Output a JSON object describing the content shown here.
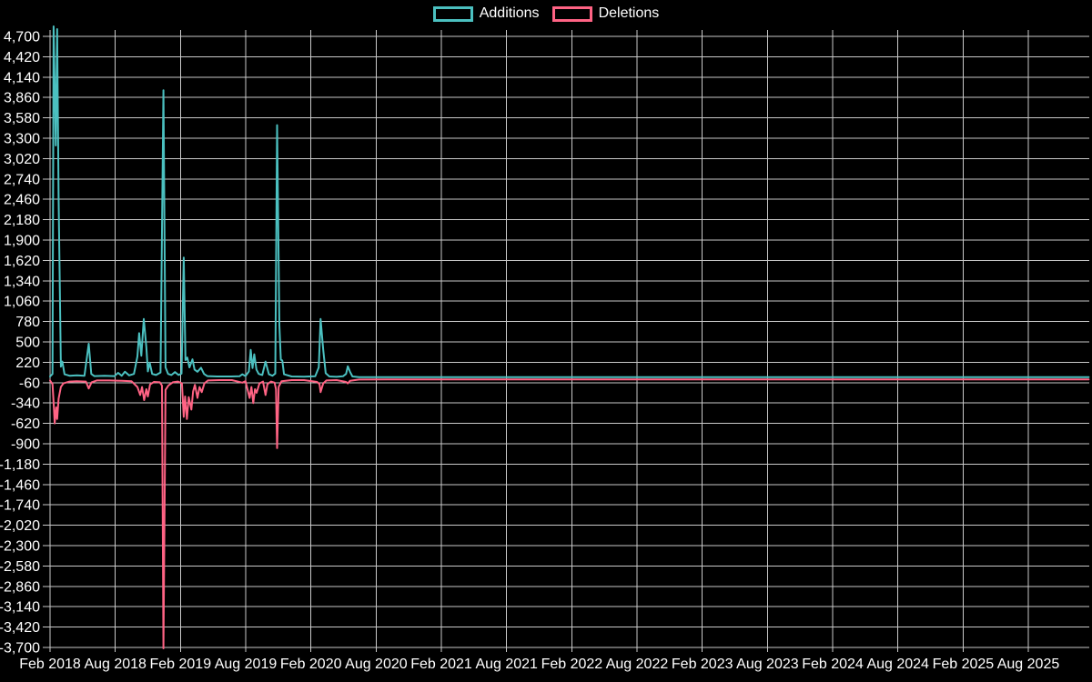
{
  "page": {
    "background": "#000000",
    "text_color": "#ffffff",
    "grid_color": "#c9c9c9"
  },
  "chart_data": {
    "type": "line",
    "title": "",
    "legend_position": "top",
    "grid": true,
    "background": "#000000",
    "x_axis": {
      "start": "2018-02-01",
      "end": "2026-01-18",
      "tick_interval_months": 6,
      "tick_labels": [
        "Feb 2018",
        "Aug 2018",
        "Feb 2019",
        "Aug 2019",
        "Feb 2020",
        "Aug 2020",
        "Feb 2021",
        "Aug 2021",
        "Feb 2022",
        "Aug 2022",
        "Feb 2023",
        "Aug 2023",
        "Feb 2024",
        "Aug 2024",
        "Feb 2025",
        "Aug 2025"
      ]
    },
    "y_axis": {
      "min": -3700,
      "max": 4700,
      "step": 280,
      "tick_labels": [
        "4,700",
        "4,420",
        "4,140",
        "3,860",
        "3,580",
        "3,300",
        "3,020",
        "2,740",
        "2,460",
        "2,180",
        "1,900",
        "1,620",
        "1,340",
        "1,060",
        "780",
        "500",
        "220",
        "-60",
        "-340",
        "-620",
        "-900",
        "-1,180",
        "-1,460",
        "-1,740",
        "-2,020",
        "-2,300",
        "-2,580",
        "-2,860",
        "-3,140",
        "-3,420",
        "-3,700"
      ]
    },
    "series": [
      {
        "name": "Additions",
        "color": "#4bc0c0",
        "points": [
          [
            "2018-02-01",
            25
          ],
          [
            "2018-02-08",
            60
          ],
          [
            "2018-02-11",
            4850
          ],
          [
            "2018-02-17",
            3200
          ],
          [
            "2018-02-21",
            4800
          ],
          [
            "2018-02-25",
            2490
          ],
          [
            "2018-03-01",
            160
          ],
          [
            "2018-03-05",
            230
          ],
          [
            "2018-03-11",
            55
          ],
          [
            "2018-03-25",
            35
          ],
          [
            "2018-04-15",
            40
          ],
          [
            "2018-05-06",
            35
          ],
          [
            "2018-05-18",
            475
          ],
          [
            "2018-05-25",
            60
          ],
          [
            "2018-06-03",
            30
          ],
          [
            "2018-07-01",
            35
          ],
          [
            "2018-07-29",
            30
          ],
          [
            "2018-08-09",
            75
          ],
          [
            "2018-08-19",
            35
          ],
          [
            "2018-08-28",
            90
          ],
          [
            "2018-09-09",
            40
          ],
          [
            "2018-09-23",
            60
          ],
          [
            "2018-10-02",
            300
          ],
          [
            "2018-10-07",
            620
          ],
          [
            "2018-10-13",
            310
          ],
          [
            "2018-10-20",
            815
          ],
          [
            "2018-10-27",
            430
          ],
          [
            "2018-11-01",
            95
          ],
          [
            "2018-11-06",
            215
          ],
          [
            "2018-11-13",
            60
          ],
          [
            "2018-11-24",
            45
          ],
          [
            "2018-12-06",
            80
          ],
          [
            "2018-12-14",
            3960
          ],
          [
            "2018-12-20",
            150
          ],
          [
            "2018-12-27",
            60
          ],
          [
            "2019-01-06",
            45
          ],
          [
            "2019-01-16",
            85
          ],
          [
            "2019-01-26",
            45
          ],
          [
            "2019-02-04",
            65
          ],
          [
            "2019-02-10",
            1660
          ],
          [
            "2019-02-15",
            250
          ],
          [
            "2019-02-20",
            285
          ],
          [
            "2019-02-26",
            150
          ],
          [
            "2019-03-04",
            260
          ],
          [
            "2019-03-10",
            120
          ],
          [
            "2019-03-18",
            90
          ],
          [
            "2019-03-28",
            145
          ],
          [
            "2019-04-06",
            60
          ],
          [
            "2019-04-15",
            30
          ],
          [
            "2019-05-12",
            25
          ],
          [
            "2019-06-16",
            25
          ],
          [
            "2019-07-14",
            28
          ],
          [
            "2019-07-22",
            55
          ],
          [
            "2019-07-31",
            30
          ],
          [
            "2019-08-10",
            95
          ],
          [
            "2019-08-15",
            390
          ],
          [
            "2019-08-20",
            140
          ],
          [
            "2019-08-25",
            330
          ],
          [
            "2019-08-31",
            120
          ],
          [
            "2019-09-07",
            60
          ],
          [
            "2019-09-17",
            45
          ],
          [
            "2019-09-26",
            230
          ],
          [
            "2019-10-05",
            55
          ],
          [
            "2019-10-15",
            35
          ],
          [
            "2019-10-23",
            65
          ],
          [
            "2019-10-28",
            3480
          ],
          [
            "2019-11-04",
            730
          ],
          [
            "2019-11-08",
            255
          ],
          [
            "2019-11-12",
            245
          ],
          [
            "2019-11-17",
            55
          ],
          [
            "2019-12-08",
            25
          ],
          [
            "2020-01-12",
            22
          ],
          [
            "2020-02-13",
            28
          ],
          [
            "2020-02-23",
            150
          ],
          [
            "2020-02-28",
            815
          ],
          [
            "2020-03-05",
            390
          ],
          [
            "2020-03-12",
            70
          ],
          [
            "2020-03-22",
            25
          ],
          [
            "2020-04-12",
            20
          ],
          [
            "2020-04-30",
            28
          ],
          [
            "2020-05-08",
            60
          ],
          [
            "2020-05-13",
            165
          ],
          [
            "2020-05-19",
            90
          ],
          [
            "2020-05-26",
            25
          ],
          [
            "2020-06-14",
            15
          ],
          [
            "2020-09-01",
            15
          ],
          [
            "2021-03-01",
            15
          ],
          [
            "2021-09-01",
            15
          ],
          [
            "2022-03-01",
            15
          ],
          [
            "2022-09-01",
            15
          ],
          [
            "2023-03-01",
            15
          ],
          [
            "2023-09-01",
            15
          ],
          [
            "2024-03-01",
            15
          ],
          [
            "2024-09-01",
            15
          ],
          [
            "2025-03-01",
            15
          ],
          [
            "2025-09-01",
            15
          ],
          [
            "2026-01-18",
            15
          ]
        ]
      },
      {
        "name": "Deletions",
        "color": "#ff6384",
        "points": [
          [
            "2018-02-01",
            -30
          ],
          [
            "2018-02-08",
            -80
          ],
          [
            "2018-02-11",
            -330
          ],
          [
            "2018-02-14",
            -620
          ],
          [
            "2018-02-18",
            -400
          ],
          [
            "2018-02-21",
            -560
          ],
          [
            "2018-02-25",
            -280
          ],
          [
            "2018-03-01",
            -120
          ],
          [
            "2018-03-08",
            -70
          ],
          [
            "2018-03-25",
            -45
          ],
          [
            "2018-04-15",
            -40
          ],
          [
            "2018-05-10",
            -45
          ],
          [
            "2018-05-18",
            -140
          ],
          [
            "2018-05-26",
            -55
          ],
          [
            "2018-06-10",
            -30
          ],
          [
            "2018-07-15",
            -30
          ],
          [
            "2018-08-19",
            -35
          ],
          [
            "2018-09-16",
            -40
          ],
          [
            "2018-10-02",
            -120
          ],
          [
            "2018-10-10",
            -230
          ],
          [
            "2018-10-15",
            -120
          ],
          [
            "2018-10-21",
            -300
          ],
          [
            "2018-10-27",
            -150
          ],
          [
            "2018-11-01",
            -250
          ],
          [
            "2018-11-07",
            -85
          ],
          [
            "2018-11-18",
            -50
          ],
          [
            "2018-12-04",
            -55
          ],
          [
            "2018-12-10",
            -100
          ],
          [
            "2018-12-14",
            -3750
          ],
          [
            "2018-12-20",
            -160
          ],
          [
            "2018-12-28",
            -100
          ],
          [
            "2019-01-10",
            -55
          ],
          [
            "2019-01-24",
            -45
          ],
          [
            "2019-02-05",
            -70
          ],
          [
            "2019-02-10",
            -530
          ],
          [
            "2019-02-14",
            -250
          ],
          [
            "2019-02-19",
            -560
          ],
          [
            "2019-02-24",
            -260
          ],
          [
            "2019-03-01",
            -430
          ],
          [
            "2019-03-06",
            -180
          ],
          [
            "2019-03-11",
            -90
          ],
          [
            "2019-03-18",
            -270
          ],
          [
            "2019-03-24",
            -120
          ],
          [
            "2019-03-30",
            -190
          ],
          [
            "2019-04-07",
            -70
          ],
          [
            "2019-04-17",
            -30
          ],
          [
            "2019-05-19",
            -25
          ],
          [
            "2019-06-23",
            -25
          ],
          [
            "2019-07-22",
            -60
          ],
          [
            "2019-07-31",
            -40
          ],
          [
            "2019-08-12",
            -270
          ],
          [
            "2019-08-17",
            -120
          ],
          [
            "2019-08-22",
            -340
          ],
          [
            "2019-08-27",
            -150
          ],
          [
            "2019-09-01",
            -200
          ],
          [
            "2019-09-09",
            -70
          ],
          [
            "2019-09-19",
            -45
          ],
          [
            "2019-09-26",
            -230
          ],
          [
            "2019-10-01",
            -80
          ],
          [
            "2019-10-11",
            -45
          ],
          [
            "2019-10-21",
            -60
          ],
          [
            "2019-10-25",
            -150
          ],
          [
            "2019-10-28",
            -960
          ],
          [
            "2019-11-02",
            -120
          ],
          [
            "2019-11-10",
            -40
          ],
          [
            "2019-12-08",
            -25
          ],
          [
            "2020-01-12",
            -25
          ],
          [
            "2020-02-18",
            -50
          ],
          [
            "2020-02-25",
            -80
          ],
          [
            "2020-02-28",
            -190
          ],
          [
            "2020-03-05",
            -70
          ],
          [
            "2020-03-14",
            -30
          ],
          [
            "2020-04-12",
            -25
          ],
          [
            "2020-05-08",
            -50
          ],
          [
            "2020-05-13",
            -70
          ],
          [
            "2020-05-19",
            -35
          ],
          [
            "2020-06-14",
            -18
          ],
          [
            "2020-09-01",
            -15
          ],
          [
            "2021-03-01",
            -15
          ],
          [
            "2021-09-01",
            -15
          ],
          [
            "2022-03-01",
            -15
          ],
          [
            "2022-09-01",
            -15
          ],
          [
            "2023-03-01",
            -15
          ],
          [
            "2023-09-01",
            -15
          ],
          [
            "2024-03-01",
            -15
          ],
          [
            "2024-09-01",
            -15
          ],
          [
            "2025-03-01",
            -15
          ],
          [
            "2025-09-01",
            -15
          ],
          [
            "2026-01-18",
            -15
          ]
        ]
      }
    ]
  }
}
